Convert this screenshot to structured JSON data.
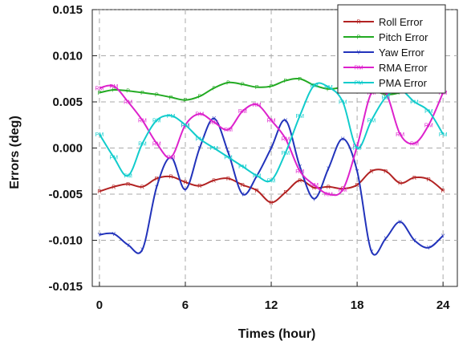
{
  "chart_data": {
    "type": "line",
    "xlabel": "Times (hour)",
    "ylabel": "Errors (deg)",
    "xlim": [
      -0.5,
      25
    ],
    "ylim": [
      -0.015,
      0.015
    ],
    "xticks": [
      0,
      6,
      12,
      18,
      24
    ],
    "xtick_labels": [
      "0",
      "6",
      "12",
      "18",
      "24"
    ],
    "yticks": [
      -0.015,
      -0.01,
      -0.005,
      0.0,
      0.005,
      0.01,
      0.015
    ],
    "ytick_labels": [
      "-0.015",
      "-0.010",
      "-0.005",
      "0.000",
      "0.005",
      "0.010",
      "0.015"
    ],
    "grid": true,
    "legend_position": "top-right",
    "x": [
      0,
      1,
      2,
      3,
      4,
      5,
      6,
      7,
      8,
      9,
      10,
      11,
      12,
      13,
      14,
      15,
      16,
      17,
      18,
      19,
      20,
      21,
      22,
      23,
      24
    ],
    "series": [
      {
        "name": "Roll Error",
        "marker": "R",
        "color": "#b22222",
        "values": [
          -0.0047,
          -0.0042,
          -0.0039,
          -0.0042,
          -0.0033,
          -0.0031,
          -0.0037,
          -0.0041,
          -0.0035,
          -0.0033,
          -0.004,
          -0.0046,
          -0.0059,
          -0.0048,
          -0.0035,
          -0.0043,
          -0.0042,
          -0.0044,
          -0.004,
          -0.0025,
          -0.0025,
          -0.0038,
          -0.0032,
          -0.0034,
          -0.0046
        ]
      },
      {
        "name": "Pitch Error",
        "marker": "P",
        "color": "#22aa22",
        "values": [
          0.006,
          0.0063,
          0.0062,
          0.006,
          0.0058,
          0.0055,
          0.0052,
          0.0056,
          0.0065,
          0.0071,
          0.0069,
          0.0066,
          0.0067,
          0.0073,
          0.0075,
          0.0068,
          0.0064,
          0.0066,
          0.0068,
          0.0064,
          0.0058,
          0.006,
          0.0065,
          0.0067,
          0.0065
        ]
      },
      {
        "name": "Yaw Error",
        "marker": "Y",
        "color": "#2233bb",
        "values": [
          -0.0094,
          -0.0093,
          -0.0105,
          -0.011,
          -0.0042,
          -0.001,
          -0.0045,
          0.0,
          0.0032,
          -0.0005,
          -0.005,
          -0.003,
          0.0,
          0.003,
          -0.002,
          -0.0055,
          -0.0022,
          0.001,
          -0.0025,
          -0.0112,
          -0.0098,
          -0.008,
          -0.01,
          -0.0108,
          -0.0095
        ]
      },
      {
        "name": "RMA Error",
        "marker": "RM",
        "color": "#dd22cc",
        "values": [
          0.0065,
          0.0067,
          0.005,
          0.003,
          0.0005,
          -0.001,
          0.0025,
          0.0037,
          0.0028,
          0.002,
          0.004,
          0.0047,
          0.003,
          0.001,
          -0.0025,
          -0.004,
          -0.005,
          -0.0045,
          0.0002,
          0.006,
          0.006,
          0.0015,
          0.0005,
          0.0025,
          0.006
        ]
      },
      {
        "name": "PMA Error",
        "marker": "PM",
        "color": "#11cccc",
        "values": [
          0.0015,
          -0.001,
          -0.003,
          0.0005,
          0.003,
          0.0035,
          0.0025,
          0.001,
          0.0,
          -0.001,
          -0.002,
          -0.003,
          -0.0035,
          -0.0005,
          0.0035,
          0.0068,
          0.0066,
          0.005,
          0.0,
          0.003,
          0.0055,
          0.0063,
          0.005,
          0.004,
          0.0015
        ]
      }
    ]
  }
}
